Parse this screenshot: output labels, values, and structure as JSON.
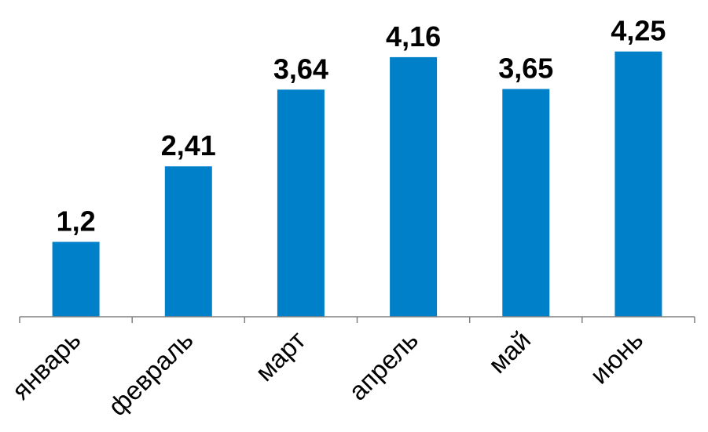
{
  "chart_data": {
    "type": "bar",
    "categories": [
      "январь",
      "февраль",
      "март",
      "апрель",
      "май",
      "июнь"
    ],
    "values": [
      1.2,
      2.41,
      3.64,
      4.16,
      3.65,
      4.25
    ],
    "data_labels": [
      "1,2",
      "2,41",
      "3,64",
      "4,16",
      "3,65",
      "4,25"
    ],
    "ylim": [
      0,
      5
    ],
    "bar_color": "#0080C8",
    "axis_color": "#808080",
    "grid": false,
    "legend": "none"
  }
}
